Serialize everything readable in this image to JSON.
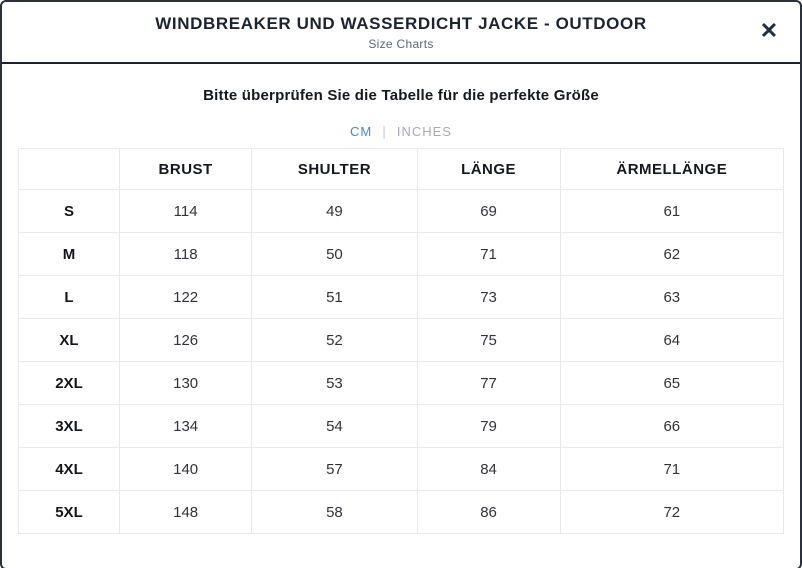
{
  "modal": {
    "title": "WINDBREAKER UND WASSERDICHT JACKE - OUTDOOR",
    "subtitle": "Size Charts",
    "close_icon": "✕"
  },
  "content": {
    "heading": "Bitte überprüfen Sie die Tabelle für die perfekte Größe",
    "unit_tabs": {
      "separator": "|",
      "options": [
        {
          "label": "CM",
          "active": true
        },
        {
          "label": "INCHES",
          "active": false
        }
      ]
    },
    "colors": {
      "active_tab": "#4a86cd",
      "inactive_tab": "#a6abb3",
      "modal_border": "#2a313c",
      "table_border": "#e9e9e9"
    }
  },
  "size_chart": {
    "columns": [
      "",
      "BRUST",
      "SHULTER",
      "LÄNGE",
      "ÄRMELLÄNGE"
    ],
    "rows": [
      {
        "size": "S",
        "values": [
          "114",
          "49",
          "69",
          "61"
        ]
      },
      {
        "size": "M",
        "values": [
          "118",
          "50",
          "71",
          "62"
        ]
      },
      {
        "size": "L",
        "values": [
          "122",
          "51",
          "73",
          "63"
        ]
      },
      {
        "size": "XL",
        "values": [
          "126",
          "52",
          "75",
          "64"
        ]
      },
      {
        "size": "2XL",
        "values": [
          "130",
          "53",
          "77",
          "65"
        ]
      },
      {
        "size": "3XL",
        "values": [
          "134",
          "54",
          "79",
          "66"
        ]
      },
      {
        "size": "4XL",
        "values": [
          "140",
          "57",
          "84",
          "71"
        ]
      },
      {
        "size": "5XL",
        "values": [
          "148",
          "58",
          "86",
          "72"
        ]
      }
    ]
  }
}
